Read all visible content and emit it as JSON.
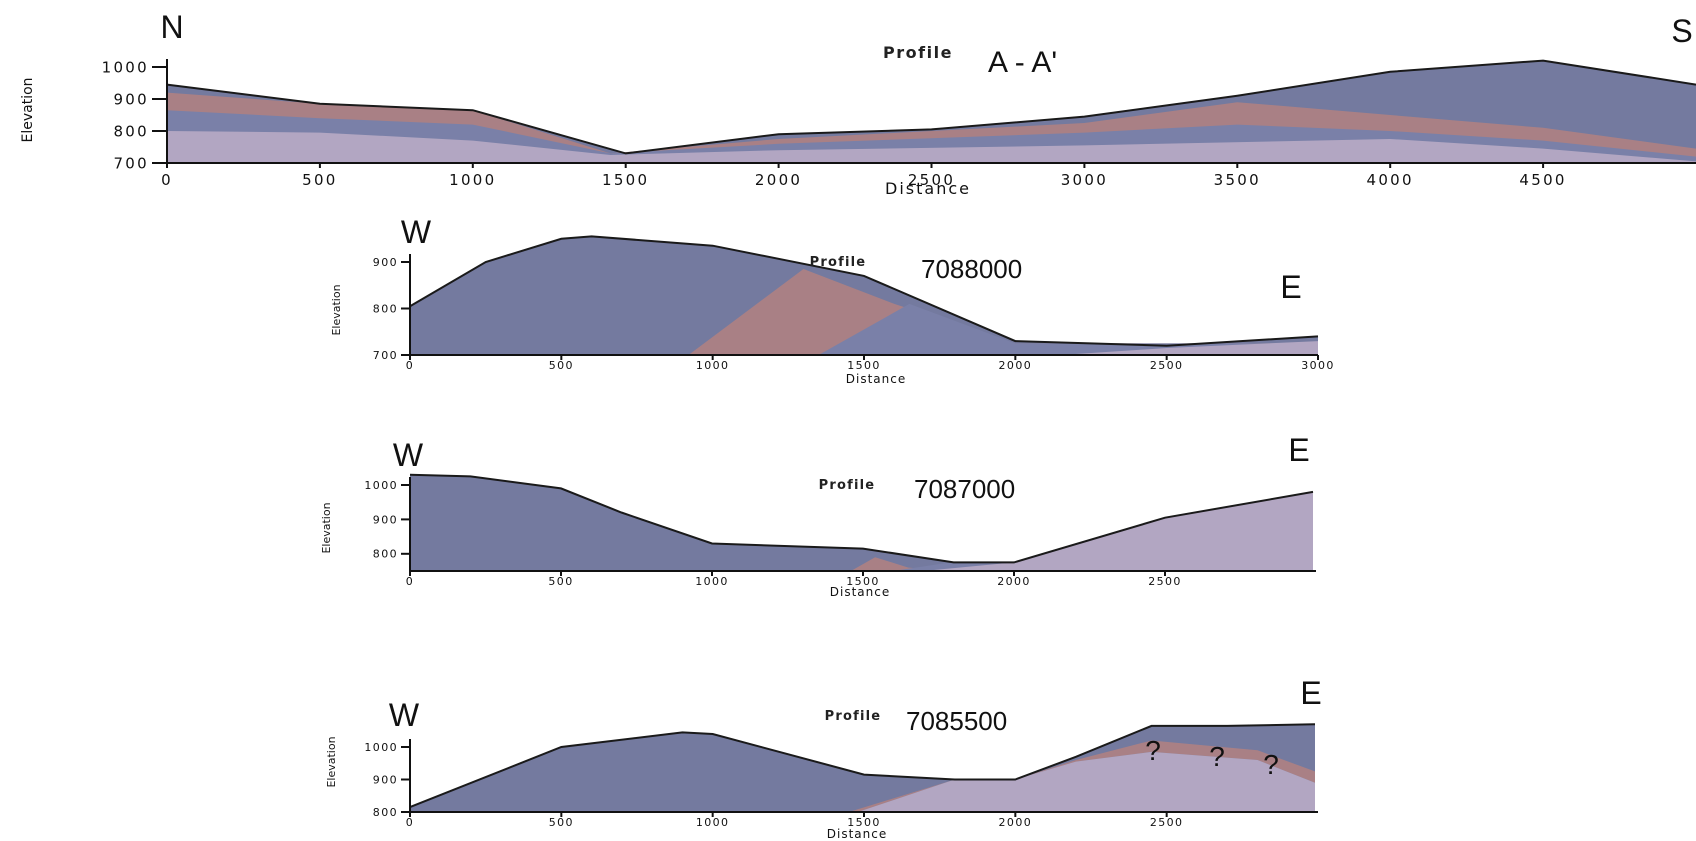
{
  "chart_data": [
    {
      "type": "area",
      "title": "Profile",
      "profile_id": "A - A'",
      "left_orientation": "N",
      "right_orientation": "S",
      "xlabel": "Distance",
      "ylabel": "Elevation",
      "xlim": [
        0,
        5000
      ],
      "ylim": [
        700,
        1000
      ],
      "x_ticks": [
        0,
        500,
        1000,
        1500,
        2000,
        2500,
        3000,
        3500,
        4000,
        4500
      ],
      "y_ticks": [
        700,
        800,
        900,
        1000
      ],
      "colors": {
        "layer_1": "#b2a6c2",
        "layer_2": "#7a80a8",
        "layer_3": "#a98085",
        "layer_4": "#747a9f"
      },
      "layers": [
        {
          "id": "layer_1",
          "x": [
            0,
            500,
            1000,
            1450,
            2000,
            3000,
            4000,
            4500,
            5000
          ],
          "y": [
            800,
            795,
            770,
            725,
            740,
            755,
            775,
            745,
            705
          ]
        },
        {
          "id": "layer_2",
          "x": [
            0,
            500,
            1000,
            1450,
            2000,
            3000,
            3500,
            4000,
            4500,
            5000
          ],
          "y": [
            865,
            840,
            820,
            730,
            760,
            795,
            820,
            800,
            770,
            720
          ]
        },
        {
          "id": "layer_3",
          "x": [
            0,
            500,
            1000,
            1450,
            2000,
            3000,
            3500,
            4000,
            4500,
            5000
          ],
          "y": [
            920,
            885,
            865,
            730,
            775,
            825,
            890,
            850,
            810,
            745
          ]
        },
        {
          "id": "layer_4",
          "x": [
            0,
            500,
            1000,
            1500,
            2000,
            2500,
            3000,
            3500,
            4000,
            4500,
            5000
          ],
          "y": [
            945,
            885,
            865,
            730,
            790,
            805,
            845,
            910,
            985,
            1020,
            945
          ]
        }
      ]
    },
    {
      "type": "area",
      "title": "Profile",
      "profile_id": "7088000",
      "left_orientation": "W",
      "right_orientation": "E",
      "xlabel": "Distance",
      "ylabel": "Elevation",
      "xlim": [
        0,
        3000
      ],
      "ylim": [
        700,
        900
      ],
      "x_ticks": [
        0,
        500,
        1000,
        1500,
        2000,
        2500,
        3000
      ],
      "y_ticks": [
        700,
        800,
        900
      ],
      "colors": {
        "layer_1": "#b2a6c2",
        "layer_2": "#7a80a8",
        "layer_3": "#a98085",
        "layer_4": "#747a9f"
      },
      "layers": [
        {
          "id": "layer_1",
          "x": [
            0,
            2150,
            2500,
            3000
          ],
          "y": [
            700,
            700,
            715,
            730
          ]
        },
        {
          "id": "layer_2",
          "x": [
            0,
            1350,
            1650,
            2000,
            3000
          ],
          "y": [
            700,
            700,
            810,
            725,
            725
          ]
        },
        {
          "id": "layer_3",
          "x": [
            0,
            920,
            1300,
            1600,
            2000,
            3000
          ],
          "y": [
            700,
            700,
            885,
            810,
            725,
            725
          ]
        },
        {
          "id": "layer_4",
          "x": [
            0,
            250,
            500,
            600,
            1000,
            1500,
            2000,
            2500,
            3000
          ],
          "y": [
            805,
            900,
            950,
            955,
            935,
            870,
            730,
            720,
            740
          ]
        }
      ]
    },
    {
      "type": "area",
      "title": "Profile",
      "profile_id": "7087000",
      "left_orientation": "W",
      "right_orientation": "E",
      "xlabel": "Distance",
      "ylabel": "Elevation",
      "xlim": [
        0,
        3000
      ],
      "ylim": [
        750,
        1000
      ],
      "x_ticks": [
        0,
        500,
        1000,
        1500,
        2000,
        2500
      ],
      "y_ticks": [
        800,
        900,
        1000
      ],
      "colors": {
        "layer_1": "#b2a6c2",
        "layer_2": "#7a80a8",
        "layer_3": "#a98085",
        "layer_4": "#747a9f"
      },
      "layers": [
        {
          "id": "layer_1",
          "x": [
            0,
            1700,
            2000,
            2500,
            2990
          ],
          "y": [
            750,
            750,
            775,
            905,
            980
          ]
        },
        {
          "id": "layer_2",
          "x": [
            0,
            1600,
            1790,
            2000
          ],
          "y": [
            750,
            750,
            775,
            775
          ]
        },
        {
          "id": "layer_3",
          "x": [
            0,
            1460,
            1540,
            1650,
            1800
          ],
          "y": [
            750,
            750,
            790,
            760,
            750
          ]
        },
        {
          "id": "layer_4",
          "x": [
            0,
            200,
            500,
            700,
            1000,
            1500,
            1800,
            2000,
            2500,
            2990
          ],
          "y": [
            1030,
            1025,
            990,
            920,
            830,
            815,
            775,
            775,
            905,
            980
          ]
        }
      ]
    },
    {
      "type": "area",
      "title": "Profile",
      "profile_id": "7085500",
      "left_orientation": "W",
      "right_orientation": "E",
      "xlabel": "Distance",
      "ylabel": "Elevation",
      "xlim": [
        0,
        3000
      ],
      "ylim": [
        800,
        1000
      ],
      "x_ticks": [
        0,
        500,
        1000,
        1500,
        2000,
        2500
      ],
      "y_ticks": [
        800,
        900,
        1000
      ],
      "annotations": [
        "?",
        "?",
        "?"
      ],
      "colors": {
        "layer_1": "#b2a6c2",
        "layer_2": "#7a80a8",
        "layer_3": "#a98085",
        "layer_4": "#747a9f"
      },
      "layers": [
        {
          "id": "layer_1",
          "x": [
            0,
            1480,
            1800,
            2000,
            2200,
            2450,
            2800,
            2990
          ],
          "y": [
            800,
            800,
            900,
            900,
            955,
            985,
            960,
            890
          ]
        },
        {
          "id": "layer_2",
          "x": [
            0,
            1480,
            1800,
            2000,
            2200,
            2450,
            2800,
            2990
          ],
          "y": [
            800,
            800,
            900,
            900,
            955,
            985,
            960,
            890
          ]
        },
        {
          "id": "layer_3",
          "x": [
            0,
            1450,
            1800,
            2000,
            2200,
            2450,
            2800,
            2990
          ],
          "y": [
            800,
            800,
            900,
            900,
            960,
            1020,
            990,
            925
          ]
        },
        {
          "id": "layer_4",
          "x": [
            0,
            500,
            900,
            1000,
            1500,
            1800,
            2000,
            2200,
            2450,
            2700,
            2990
          ],
          "y": [
            815,
            1000,
            1045,
            1040,
            915,
            900,
            900,
            970,
            1065,
            1065,
            1070
          ]
        }
      ]
    }
  ]
}
